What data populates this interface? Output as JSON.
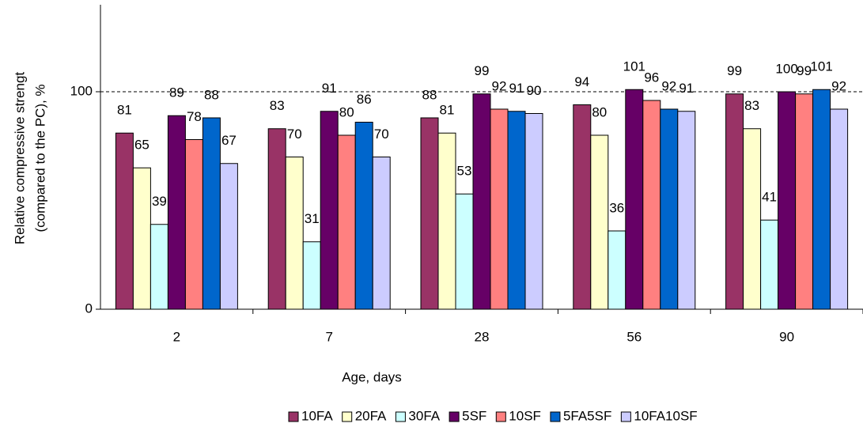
{
  "chart_data": {
    "type": "bar",
    "ylabel": [
      "Relative compressive strengt",
      "(compared to the PC), %"
    ],
    "xlabel": "Age, days",
    "categories": [
      "2",
      "7",
      "28",
      "56",
      "90"
    ],
    "series": [
      {
        "name": "10FA",
        "color": "#993366",
        "values": [
          81,
          83,
          88,
          94,
          99
        ]
      },
      {
        "name": "20FA",
        "color": "#FFFFCC",
        "values": [
          65,
          70,
          81,
          80,
          83
        ]
      },
      {
        "name": "30FA",
        "color": "#CCFFFF",
        "values": [
          39,
          31,
          53,
          36,
          41
        ]
      },
      {
        "name": "5SF",
        "color": "#660066",
        "values": [
          89,
          91,
          99,
          101,
          100
        ]
      },
      {
        "name": "10SF",
        "color": "#FF8080",
        "values": [
          78,
          80,
          92,
          96,
          99
        ]
      },
      {
        "name": "5FA5SF",
        "color": "#0066CC",
        "values": [
          88,
          86,
          91,
          92,
          101
        ]
      },
      {
        "name": "10FA10SF",
        "color": "#CCCCFF",
        "values": [
          67,
          70,
          90,
          91,
          92
        ]
      }
    ],
    "ylim": [
      0,
      140
    ],
    "yticks": [
      0,
      100
    ],
    "reference_line": 100
  }
}
